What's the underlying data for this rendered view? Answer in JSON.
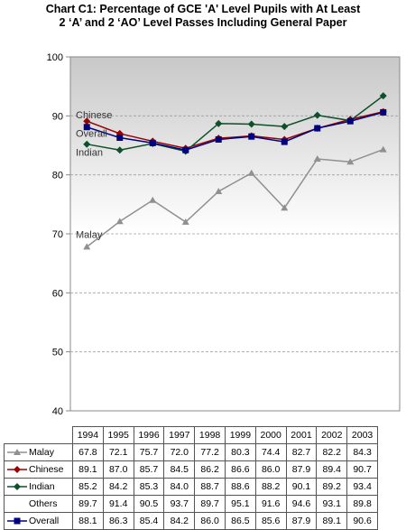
{
  "chart_data": {
    "type": "line",
    "title_lines": [
      "Chart C1: Percentage of GCE 'A' Level Pupils with At Least",
      "2 ‘A’ and 2 ‘AO’ Level Passes Including General Paper"
    ],
    "x": [
      "1994",
      "1995",
      "1996",
      "1997",
      "1998",
      "1999",
      "2000",
      "2001",
      "2002",
      "2003"
    ],
    "ylim": [
      40,
      100
    ],
    "yticks": [
      "40",
      "50",
      "60",
      "70",
      "80",
      "90",
      "100"
    ],
    "grid": "horizontal dashed",
    "series": [
      {
        "name": "Malay",
        "label": "Malay",
        "color": "#909090",
        "marker": "triangle",
        "plotted": true,
        "values": [
          67.8,
          72.1,
          75.7,
          72.0,
          77.2,
          80.3,
          74.4,
          82.7,
          82.2,
          84.3
        ]
      },
      {
        "name": "Chinese",
        "label": "Chinese",
        "color": "#990000",
        "marker": "diamond",
        "plotted": true,
        "values": [
          89.1,
          87.0,
          85.7,
          84.5,
          86.2,
          86.6,
          86.0,
          87.9,
          89.4,
          90.7
        ]
      },
      {
        "name": "Indian",
        "label": "Indian",
        "color": "#0f4f2a",
        "marker": "diamond",
        "plotted": true,
        "values": [
          85.2,
          84.2,
          85.3,
          84.0,
          88.7,
          88.6,
          88.2,
          90.1,
          89.2,
          93.4
        ]
      },
      {
        "name": "Others",
        "color": "#000000",
        "marker": "none",
        "plotted": false,
        "values": [
          89.7,
          91.4,
          90.5,
          93.7,
          89.7,
          95.1,
          91.6,
          94.6,
          93.1,
          89.8
        ]
      },
      {
        "name": "Overall",
        "label": "Overall",
        "color": "#000080",
        "marker": "square",
        "plotted": true,
        "values": [
          88.1,
          86.3,
          85.4,
          84.2,
          86.0,
          86.5,
          85.6,
          87.9,
          89.1,
          90.6
        ]
      }
    ]
  }
}
